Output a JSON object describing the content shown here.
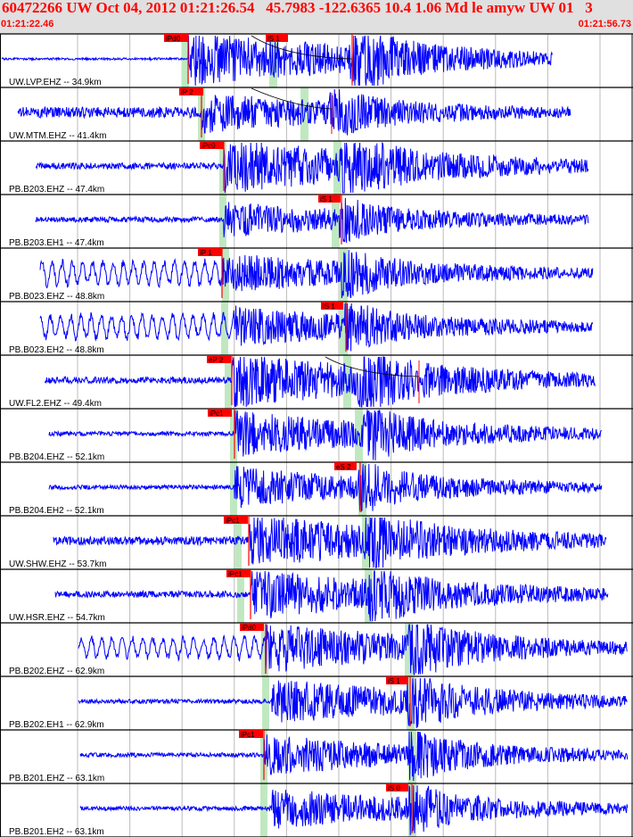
{
  "header": {
    "title": "60472266 UW Oct 04, 2012 01:21:26.54   45.7983 -122.6365 10.4 1.06 Md le amyw UW 01   3",
    "start_time": "01:21:22.46",
    "end_time": "01:21:56.73"
  },
  "colors": {
    "trace": "#0000ff",
    "pick": "#ff0000",
    "pick_label_bg": "#ff0000",
    "pick_label_text": "#000000",
    "predicted_band": "#c0e8c0",
    "grid": "#bbbbbb",
    "header_bg": "#e0e0e0",
    "title_text": "#ff0000",
    "channel_label": "#000000"
  },
  "chart_data": {
    "type": "seismogram",
    "x_range": [
      "01:21:22.46",
      "01:21:56.73"
    ],
    "traces": [
      {
        "label": "UW.LVP.EHZ -- 34.9km",
        "p_pick": "iPd0",
        "s_pick": "iS 1"
      },
      {
        "label": "UW.MTM.EHZ -- 41.4km",
        "p_pick": "iP 2",
        "s_pick": ""
      },
      {
        "label": "PB.B203.EHZ -- 47.4km",
        "p_pick": "iPc0",
        "s_pick": ""
      },
      {
        "label": "PB.B203.EH1 -- 47.4km",
        "p_pick": "",
        "s_pick": "iS 1"
      },
      {
        "label": "PB.B023.EHZ -- 48.8km",
        "p_pick": "iP 1",
        "s_pick": ""
      },
      {
        "label": "PB.B023.EH2 -- 48.8km",
        "p_pick": "",
        "s_pick": "iS 1"
      },
      {
        "label": "UW.FL2.EHZ -- 49.4km",
        "p_pick": "eP 2",
        "s_pick": ""
      },
      {
        "label": "PB.B204.EHZ -- 52.1km",
        "p_pick": "iPc1",
        "s_pick": ""
      },
      {
        "label": "PB.B204.EH2 -- 52.1km",
        "p_pick": "",
        "s_pick": "eS 2"
      },
      {
        "label": "UW.SHW.EHZ -- 53.7km",
        "p_pick": "iPc1",
        "s_pick": ""
      },
      {
        "label": "UW.HSR.EHZ -- 54.7km",
        "p_pick": "iPc1",
        "s_pick": ""
      },
      {
        "label": "PB.B202.EHZ -- 62.9km",
        "p_pick": "iPd0",
        "s_pick": ""
      },
      {
        "label": "PB.B202.EH1 -- 62.9km",
        "p_pick": "",
        "s_pick": "iS 1"
      },
      {
        "label": "PB.B201.EHZ -- 63.1km",
        "p_pick": "iPc1",
        "s_pick": ""
      },
      {
        "label": "PB.B201.EH2 -- 63.1km",
        "p_pick": "",
        "s_pick": "iS 0"
      }
    ]
  }
}
